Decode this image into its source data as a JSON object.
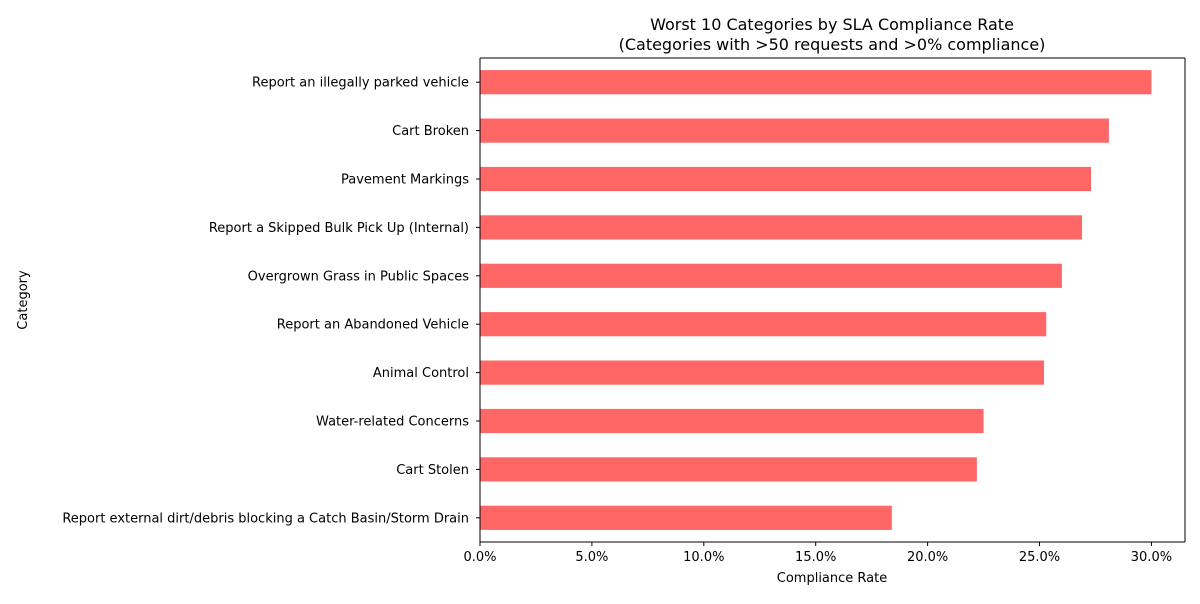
{
  "chart_data": {
    "type": "bar",
    "orientation": "horizontal",
    "title": "Worst 10 Categories by SLA Compliance Rate",
    "subtitle": "(Categories with >50 requests and >0% compliance)",
    "xlabel": "Compliance Rate",
    "ylabel": "Category",
    "xlim": [
      0,
      0.315
    ],
    "x_ticks": [
      0,
      0.05,
      0.1,
      0.15,
      0.2,
      0.25,
      0.3
    ],
    "x_tick_labels": [
      "0.0%",
      "5.0%",
      "10.0%",
      "15.0%",
      "20.0%",
      "25.0%",
      "30.0%"
    ],
    "categories": [
      "Report an illegally parked vehicle",
      "Cart Broken",
      "Pavement Markings",
      "Report a Skipped Bulk Pick Up (Internal)",
      "Overgrown Grass in Public Spaces",
      "Report an Abandoned Vehicle",
      "Animal Control",
      "Water-related Concerns",
      "Cart Stolen",
      "Report external dirt/debris blocking a Catch Basin/Storm Drain"
    ],
    "values": [
      0.3,
      0.281,
      0.273,
      0.269,
      0.26,
      0.253,
      0.252,
      0.225,
      0.222,
      0.184
    ],
    "bar_color": "#ff6666",
    "grid": false,
    "legend": "none"
  }
}
